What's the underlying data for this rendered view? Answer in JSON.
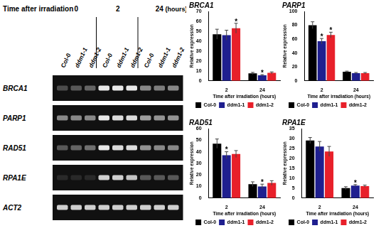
{
  "gel": {
    "title": "Time after irradiation",
    "groups": [
      "0",
      "2",
      "24"
    ],
    "unit": "(hours)",
    "lanes": [
      "Col-0",
      "ddm1-1",
      "ddm1-2",
      "Col-0",
      "ddm1-1",
      "ddm1-2",
      "Col-0",
      "ddm1-1",
      "ddm1-2"
    ],
    "genes": [
      {
        "name": "BRCA1",
        "bands": [
          0.25,
          0.3,
          0.35,
          0.9,
          0.9,
          0.9,
          0.5,
          0.45,
          0.5
        ]
      },
      {
        "name": "PARP1",
        "bands": [
          0.5,
          0.5,
          0.5,
          0.9,
          0.85,
          0.85,
          0.6,
          0.55,
          0.55
        ]
      },
      {
        "name": "RAD51",
        "bands": [
          0.3,
          0.35,
          0.4,
          0.9,
          0.85,
          0.85,
          0.55,
          0.5,
          0.5
        ]
      },
      {
        "name": "RPA1E",
        "bands": [
          0.1,
          0.1,
          0.1,
          0.8,
          0.8,
          0.75,
          0.3,
          0.3,
          0.3
        ]
      },
      {
        "name": "ACT2",
        "bands": [
          0.8,
          0.8,
          0.8,
          0.8,
          0.8,
          0.8,
          0.8,
          0.8,
          0.8
        ]
      }
    ]
  },
  "chart_data": [
    {
      "type": "bar",
      "title": "BRCA1",
      "x_label": "Time after irradiation (hours)",
      "y_label": "Relative expression",
      "categories": [
        "2",
        "24"
      ],
      "ylim": [
        0,
        70
      ],
      "yticks": [
        0,
        10,
        20,
        30,
        40,
        50,
        60,
        70
      ],
      "grid": false,
      "legend": "bottom",
      "series": [
        {
          "name": "Col-0",
          "color": "#000000",
          "values": [
            47,
            7.5
          ],
          "errors": [
            5,
            1
          ]
        },
        {
          "name": "ddm1-1",
          "color": "#1f1f8f",
          "values": [
            46,
            5.5
          ],
          "errors": [
            5,
            0.8
          ]
        },
        {
          "name": "ddm1-2",
          "color": "#e8202a",
          "values": [
            53,
            8
          ],
          "errors": [
            5,
            1
          ]
        }
      ],
      "annotations": [
        {
          "text": "*",
          "series": "ddm1-2",
          "category": "2"
        },
        {
          "text": "*",
          "series": "ddm1-1",
          "category": "24"
        }
      ]
    },
    {
      "type": "bar",
      "title": "PARP1",
      "x_label": "Time after irradiation (hours)",
      "y_label": "Relative expression",
      "categories": [
        "2",
        "24"
      ],
      "ylim": [
        0,
        100
      ],
      "yticks": [
        0,
        20,
        40,
        60,
        80,
        100
      ],
      "grid": false,
      "legend": "bottom",
      "series": [
        {
          "name": "Col-0",
          "color": "#000000",
          "values": [
            80,
            13
          ],
          "errors": [
            5,
            1
          ]
        },
        {
          "name": "ddm1-1",
          "color": "#1f1f8f",
          "values": [
            57,
            11
          ],
          "errors": [
            4,
            1
          ]
        },
        {
          "name": "ddm1-2",
          "color": "#e8202a",
          "values": [
            66,
            11
          ],
          "errors": [
            4,
            1
          ]
        }
      ],
      "annotations": [
        {
          "text": "*",
          "series": "ddm1-1",
          "category": "2"
        },
        {
          "text": "*",
          "series": "ddm1-2",
          "category": "2"
        }
      ]
    },
    {
      "type": "bar",
      "title": "RAD51",
      "x_label": "Time after irradiation (hours)",
      "y_label": "Relative expression",
      "categories": [
        "2",
        "24"
      ],
      "ylim": [
        0,
        60
      ],
      "yticks": [
        0,
        10,
        20,
        30,
        40,
        50,
        60
      ],
      "grid": false,
      "legend": "bottom",
      "series": [
        {
          "name": "Col-0",
          "color": "#000000",
          "values": [
            47,
            12
          ],
          "errors": [
            4,
            2
          ]
        },
        {
          "name": "ddm1-1",
          "color": "#1f1f8f",
          "values": [
            37,
            10
          ],
          "errors": [
            3,
            2
          ]
        },
        {
          "name": "ddm1-2",
          "color": "#e8202a",
          "values": [
            38,
            13
          ],
          "errors": [
            3,
            2
          ]
        }
      ],
      "annotations": [
        {
          "text": "*",
          "series": "ddm1-1",
          "category": "2"
        },
        {
          "text": "*",
          "series": "ddm1-1",
          "category": "24"
        }
      ]
    },
    {
      "type": "bar",
      "title": "RPA1E",
      "x_label": "Time after irradiation (hours)",
      "y_label": "Relative expression",
      "categories": [
        "2",
        "24"
      ],
      "ylim": [
        0,
        35
      ],
      "yticks": [
        0,
        5,
        10,
        15,
        20,
        25,
        30,
        35
      ],
      "grid": false,
      "legend": "bottom",
      "series": [
        {
          "name": "Col-0",
          "color": "#000000",
          "values": [
            29,
            5
          ],
          "errors": [
            1.5,
            0.7
          ]
        },
        {
          "name": "ddm1-1",
          "color": "#1f1f8f",
          "values": [
            26,
            6.3
          ],
          "errors": [
            2.5,
            0.5
          ]
        },
        {
          "name": "ddm1-2",
          "color": "#e8202a",
          "values": [
            23.5,
            6
          ],
          "errors": [
            2.5,
            0.5
          ]
        }
      ],
      "annotations": [
        {
          "text": "*",
          "series": "ddm1-1",
          "category": "24"
        }
      ]
    }
  ]
}
